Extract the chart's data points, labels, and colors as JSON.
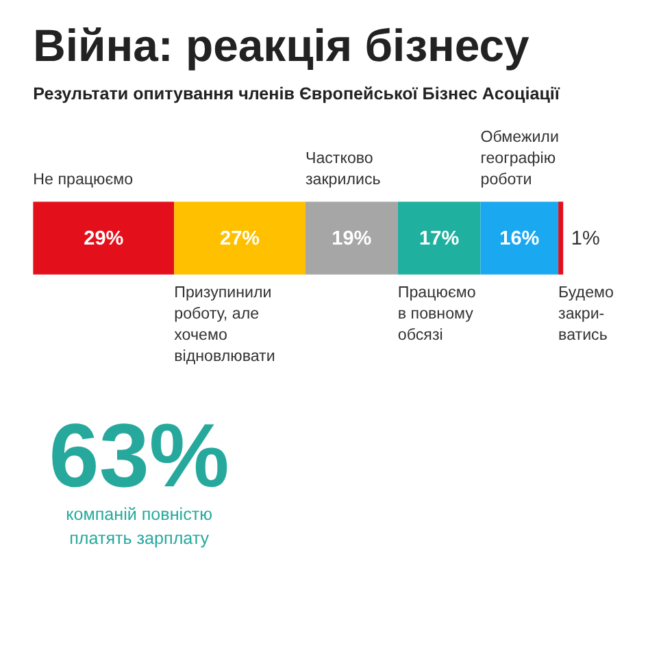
{
  "chart_data": {
    "type": "bar",
    "orientation": "horizontal",
    "stacked": true,
    "tick_labels": false,
    "title": "Війна: реакція бізнесу",
    "subtitle": "Результати опитування членів Європейської Бізнес Асоціації",
    "categories": [
      null
    ],
    "series": [
      {
        "name": "Не працюємо",
        "color": "#e3101c",
        "values": [
          29
        ],
        "value_labels": [
          "29%"
        ]
      },
      {
        "name": "Призупинили\nроботу, але\nхочемо\nвідновлювати",
        "color": "#ffc000",
        "values": [
          27
        ],
        "value_labels": [
          "27%"
        ]
      },
      {
        "name": "Частково\nзакрились",
        "color": "#a6a6a6",
        "values": [
          19
        ],
        "value_labels": [
          "19%"
        ]
      },
      {
        "name": "Працюємо\nв повному\nобсязі",
        "color": "#1fb0a0",
        "values": [
          17
        ],
        "value_labels": [
          "17%"
        ]
      },
      {
        "name": "Обмежили\nгеографію\nроботи",
        "color": "#1aa9f0",
        "values": [
          16
        ],
        "value_labels": [
          "16%"
        ]
      },
      {
        "name": "Будемо\nзакри-\nватись",
        "color": "#e3101c",
        "values": [
          1
        ],
        "value_labels": [
          "1%"
        ]
      }
    ],
    "annotations": [
      "63%",
      "компаній повністю\nплатять зарплату"
    ]
  }
}
